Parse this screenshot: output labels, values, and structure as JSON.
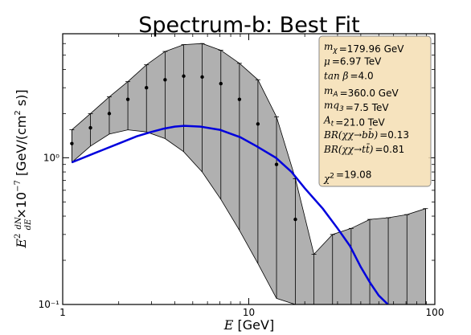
{
  "chart_data": {
    "type": "line",
    "title": "Spectrum-b: Best Fit",
    "xlabel_parts": {
      "var": "E",
      "unit": " [GeV]"
    },
    "ylabel_parts": {
      "pre": "E",
      "exp": "2",
      "frac_num": "dN",
      "frac_den": "dE",
      "times": "×10",
      "exp2": "−7",
      "unit": " [GeV/(cm",
      "unit_exp": "2",
      "unit_tail": " s)]"
    },
    "x_scale": "log",
    "y_scale": "log",
    "xlim": [
      1,
      100
    ],
    "ylim": [
      0.1,
      7.0
    ],
    "x_ticks": [
      1,
      10,
      100
    ],
    "x_tick_labels": [
      "1",
      "10",
      "100"
    ],
    "y_ticks": [
      0.1,
      1.0
    ],
    "y_tick_labels": [
      "10⁻¹",
      "10⁰"
    ],
    "grid": false,
    "series": [
      {
        "kind": "points_with_errorband",
        "color": "#000000",
        "band_color": "#b0b0b0",
        "x": [
          1.12,
          1.41,
          1.78,
          2.24,
          2.82,
          3.55,
          4.47,
          5.62,
          7.08,
          8.91,
          11.2,
          14.1,
          17.8,
          22.4,
          28.2,
          35.5,
          44.7,
          56.2,
          70.8,
          89.1
        ],
        "y": [
          1.25,
          1.6,
          2.0,
          2.5,
          3.0,
          3.4,
          3.6,
          3.55,
          3.2,
          2.5,
          1.7,
          0.9,
          0.38,
          null,
          null,
          null,
          null,
          null,
          null,
          null
        ],
        "lower": [
          0.93,
          1.2,
          1.45,
          1.55,
          1.5,
          1.35,
          1.1,
          0.8,
          0.52,
          0.32,
          0.19,
          0.11,
          0.1,
          0.1,
          0.1,
          0.1,
          0.1,
          0.1,
          0.1,
          0.1
        ],
        "upper": [
          1.55,
          2.0,
          2.6,
          3.3,
          4.3,
          5.3,
          5.9,
          6.0,
          5.4,
          4.4,
          3.4,
          1.9,
          0.72,
          0.22,
          0.3,
          0.33,
          0.38,
          0.39,
          0.41,
          0.45
        ]
      },
      {
        "kind": "line",
        "color": "#0000dd",
        "x": [
          1.12,
          1.5,
          2.0,
          2.5,
          3.0,
          3.5,
          4.0,
          4.5,
          5.5,
          7.0,
          9.0,
          11.0,
          14.0,
          17.0,
          20.0,
          25.0,
          30.0,
          35.0,
          40.0,
          45.0,
          50.0,
          56.0
        ],
        "y": [
          0.93,
          1.08,
          1.25,
          1.4,
          1.5,
          1.58,
          1.63,
          1.65,
          1.63,
          1.55,
          1.38,
          1.2,
          1.0,
          0.8,
          0.62,
          0.45,
          0.33,
          0.25,
          0.18,
          0.14,
          0.115,
          0.1
        ]
      }
    ],
    "legend": {
      "placement": "top-right",
      "background": "#f5deb3",
      "entries": [
        {
          "sym": "m",
          "sub": "χ",
          "value": "179.96 GeV"
        },
        {
          "sym": "μ",
          "sub": "",
          "value": "6.97 TeV"
        },
        {
          "sym": "tan β",
          "sub": "",
          "value": "4.0"
        },
        {
          "sym": "m",
          "sub": "A",
          "value": "360.0 GeV"
        },
        {
          "sym": "mq",
          "sub": "3",
          "value": "7.5 TeV"
        },
        {
          "sym": "A",
          "sub": "t",
          "value": "21.0 TeV"
        },
        {
          "sym": "BR(χχ→bb̄)",
          "sub": "",
          "value": "0.13"
        },
        {
          "sym": "BR(χχ→tt̄)",
          "sub": "",
          "value": "0.81"
        },
        {
          "sym": "",
          "sub": "",
          "value": ""
        },
        {
          "sym": "χ",
          "sup": "2",
          "sub": "",
          "value": "19.08"
        }
      ]
    }
  }
}
